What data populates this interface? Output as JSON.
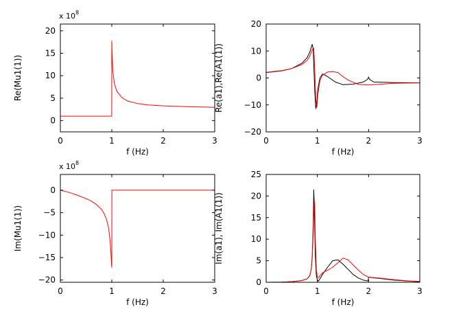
{
  "chart_data": [
    {
      "type": "line",
      "xlabel": "f (Hz)",
      "ylabel": "Re(Mu1(1))",
      "multiplier": {
        "base": "x 10",
        "exp": "8"
      },
      "xlim": [
        0,
        3
      ],
      "ylim": [
        -2.5,
        21.5
      ],
      "xticks": [
        0,
        1,
        2,
        3
      ],
      "yticks": [
        0,
        5,
        10,
        15,
        20
      ],
      "series": [
        {
          "name": "Re(Mu1)",
          "color": "#ff0000",
          "x": [
            0,
            0.5,
            0.98,
            0.999,
            1.0,
            1.005,
            1.02,
            1.05,
            1.1,
            1.2,
            1.3,
            1.5,
            1.7,
            2.0,
            2.5,
            3.0
          ],
          "y": [
            1.0,
            1.0,
            1.0,
            1.0,
            17.8,
            15.0,
            11.0,
            8.2,
            6.5,
            5.1,
            4.4,
            3.8,
            3.5,
            3.3,
            3.1,
            2.95
          ]
        }
      ]
    },
    {
      "type": "line",
      "xlabel": "f (Hz)",
      "ylabel": "Re(a1),Re(A1(1))",
      "xlim": [
        0,
        3
      ],
      "ylim": [
        -20,
        20
      ],
      "xticks": [
        0,
        1,
        2,
        3
      ],
      "yticks": [
        -20,
        -10,
        0,
        10,
        20
      ],
      "series": [
        {
          "name": "Re(a1)",
          "color": "#000000",
          "x": [
            0,
            0.3,
            0.5,
            0.7,
            0.8,
            0.85,
            0.9,
            0.92,
            0.93,
            0.95,
            0.97,
            0.99,
            1.01,
            1.05,
            1.1,
            1.2,
            1.35,
            1.5,
            1.7,
            1.9,
            1.98,
            2.0,
            2.02,
            2.1,
            2.5,
            3.0
          ],
          "y": [
            2,
            2.6,
            3.5,
            5.5,
            7.5,
            9.5,
            12.5,
            10.5,
            5,
            -5,
            -11.5,
            -9,
            -4,
            0,
            1.5,
            0.5,
            -1.5,
            -2.5,
            -2.3,
            -1.5,
            -0.5,
            0.3,
            -0.5,
            -1.5,
            -1.7,
            -1.8
          ]
        },
        {
          "name": "Re(A1)",
          "color": "#ff0000",
          "x": [
            0,
            0.3,
            0.5,
            0.7,
            0.8,
            0.85,
            0.9,
            0.93,
            0.95,
            0.97,
            0.99,
            1.01,
            1.05,
            1.1,
            1.2,
            1.3,
            1.4,
            1.5,
            1.6,
            1.8,
            2.0,
            2.5,
            3.0
          ],
          "y": [
            2.1,
            2.7,
            3.5,
            5,
            6.5,
            8,
            10.5,
            11,
            3,
            -8,
            -11,
            -6,
            -1,
            1,
            2.2,
            2.4,
            2,
            0.5,
            -0.8,
            -2.4,
            -2.6,
            -2.0,
            -1.8
          ]
        }
      ]
    },
    {
      "type": "line",
      "xlabel": "f (Hz)",
      "ylabel": "Im(Mu1(1))",
      "multiplier": {
        "base": "x 10",
        "exp": "8"
      },
      "xlim": [
        0,
        3
      ],
      "ylim": [
        -20.5,
        3.5
      ],
      "xticks": [
        0,
        1,
        2,
        3
      ],
      "yticks": [
        -20,
        -15,
        -10,
        -5,
        0
      ],
      "series": [
        {
          "name": "Im(Mu1)",
          "color": "#ff0000",
          "x": [
            0,
            0.2,
            0.4,
            0.6,
            0.7,
            0.8,
            0.85,
            0.9,
            0.93,
            0.95,
            0.97,
            0.98,
            0.99,
            0.995,
            1.0,
            1.001,
            1.5,
            2.0,
            2.5,
            3.0
          ],
          "y": [
            0,
            -0.6,
            -1.4,
            -2.4,
            -3.2,
            -4.3,
            -5.2,
            -6.6,
            -8.0,
            -9.5,
            -11.8,
            -13.5,
            -15.5,
            -16.5,
            -17.2,
            0,
            0,
            0,
            0,
            0
          ]
        }
      ]
    },
    {
      "type": "line",
      "xlabel": "f (Hz)",
      "ylabel": "Im(a1), Im(A1(1))",
      "xlim": [
        0,
        3
      ],
      "ylim": [
        0,
        25
      ],
      "xticks": [
        0,
        1,
        2,
        3
      ],
      "yticks": [
        0,
        5,
        10,
        15,
        20,
        25
      ],
      "series": [
        {
          "name": "Im(a1)",
          "color": "#000000",
          "x": [
            0,
            0.3,
            0.5,
            0.7,
            0.8,
            0.85,
            0.88,
            0.9,
            0.92,
            0.93,
            0.94,
            0.96,
            0.98,
            1.0,
            1.02,
            1.05,
            1.1,
            1.2,
            1.3,
            1.4,
            1.5,
            1.6,
            1.7,
            1.8,
            1.9,
            1.99,
            2.0,
            2.05,
            2.2,
            2.5,
            2.8,
            3.0
          ],
          "y": [
            0,
            0.05,
            0.15,
            0.4,
            0.8,
            1.5,
            3,
            6,
            14,
            21.5,
            18,
            6,
            1.5,
            0.5,
            0.3,
            0.8,
            1.8,
            3.5,
            5,
            5.2,
            4.2,
            3,
            1.8,
            1.0,
            0.5,
            0.3,
            1.2,
            1.1,
            0.9,
            0.5,
            0.25,
            0.15
          ]
        },
        {
          "name": "Im(A1)",
          "color": "#ff0000",
          "x": [
            0,
            0.3,
            0.5,
            0.7,
            0.8,
            0.85,
            0.88,
            0.9,
            0.92,
            0.94,
            0.95,
            0.96,
            0.98,
            1.0,
            1.02,
            1.05,
            1.1,
            1.2,
            1.3,
            1.4,
            1.5,
            1.6,
            1.7,
            1.8,
            1.9,
            2.0,
            2.2,
            2.5,
            2.8,
            3.0
          ],
          "y": [
            0,
            0.05,
            0.15,
            0.4,
            0.8,
            1.5,
            3,
            5.5,
            12,
            19,
            18,
            10,
            3,
            1.2,
            1.0,
            1.5,
            2.2,
            2.8,
            3.5,
            4.5,
            5.6,
            5.2,
            4.0,
            2.8,
            1.8,
            1.2,
            1.0,
            0.6,
            0.3,
            0.2
          ]
        }
      ]
    }
  ]
}
